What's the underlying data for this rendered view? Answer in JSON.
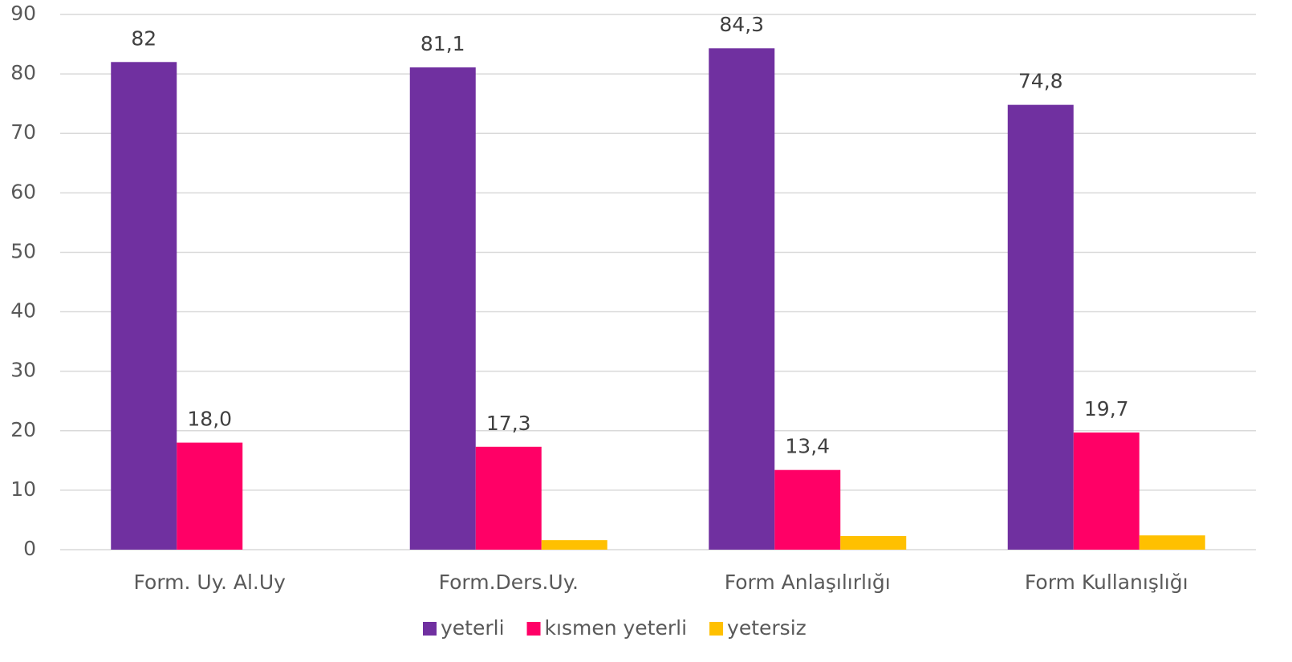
{
  "chart_data": {
    "type": "bar",
    "categories": [
      "Form. Uy. Al.Uy",
      "Form.Ders.Uy.",
      "Form Anlaşılırlığı",
      "Form Kullanışlığı"
    ],
    "series": [
      {
        "name": "yeterli",
        "color": "#7030a0",
        "values": [
          82,
          81.1,
          84.3,
          74.8
        ],
        "value_labels": [
          "82",
          "81,1",
          "84,3",
          "74,8"
        ]
      },
      {
        "name": "kısmen yeterli",
        "color": "#ff0066",
        "values": [
          18.0,
          17.3,
          13.4,
          19.7
        ],
        "value_labels": [
          "18,0",
          "17,3",
          "13,4",
          "19,7"
        ]
      },
      {
        "name": "yetersiz",
        "color": "#ffc000",
        "values": [
          0,
          1.6,
          2.3,
          2.4
        ]
      }
    ],
    "ylim": [
      0,
      90
    ],
    "yticks": [
      0,
      10,
      20,
      30,
      40,
      50,
      60,
      70,
      80,
      90
    ],
    "grid": true,
    "legend": "bottom"
  }
}
